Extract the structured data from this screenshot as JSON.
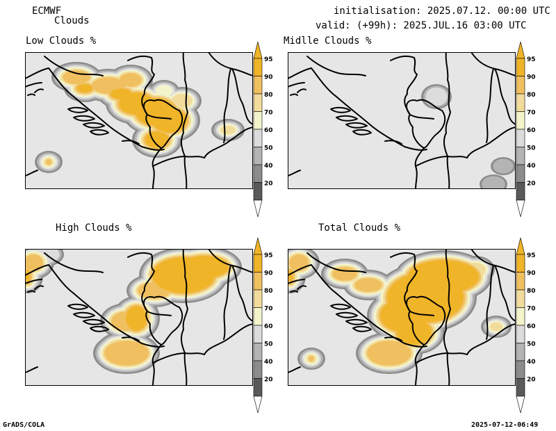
{
  "header": {
    "model": "ECMWF",
    "field": "Clouds",
    "init_line": "initialisation: 2025.07.12. 00:00 UTC",
    "valid_line": "valid: (+99h): 2025.JUL.16 03:00 UTC"
  },
  "panels": [
    {
      "title": "Low Clouds %"
    },
    {
      "title": "Midlle Clouds %"
    },
    {
      "title": "High Clouds %"
    },
    {
      "title": "Total Clouds %"
    }
  ],
  "colorbar": {
    "levels": [
      "95",
      "90",
      "80",
      "70",
      "60",
      "50",
      "40",
      "20"
    ],
    "colors": [
      "#f0b428",
      "#f0c060",
      "#f2dc9c",
      "#f4f4cc",
      "#dcdcdc",
      "#b4b4b4",
      "#8c8c8c",
      "#5a5a5a"
    ],
    "top_arrow_color": "#f0b428",
    "bottom_arrow_color": "#ffffff"
  },
  "map_colors": {
    "background": "#e6e6e6",
    "border": "#000000"
  },
  "footer": {
    "left": "GrADS/COLA",
    "right": "2025-07-12-06:49"
  }
}
